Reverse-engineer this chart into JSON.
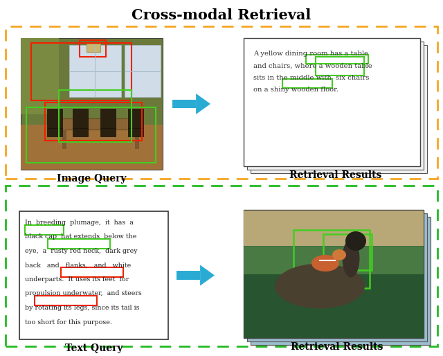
{
  "title": "Cross-modal Retrieval",
  "title_fontsize": 15,
  "background_color": "#ffffff",
  "orange_dash_color": "#F5A623",
  "green_dash_color": "#22BB22",
  "arrow_color": "#29ABD4",
  "panel_label_fontsize": 10,
  "top_panel": {
    "label_left": "Image Query",
    "label_right": "Retrieval Results",
    "text_lines": [
      "A yellow dining room has a table",
      "and chairs, where a wooden table",
      "sits in the middle with  six chairs",
      "on a shiny wooden floor."
    ]
  },
  "bottom_panel": {
    "label_left": "Text Query",
    "label_right": "Retrieval Results",
    "text_lines": [
      "In  breeding  plumage,  it  has  a",
      "black cap  hat extends  below the",
      "eye,  a  rusty red neck,  dark grey",
      "back   and   flanks,   and   white",
      "underparts.  It uses its feet  for",
      "propulsion underwater,  and steers",
      "by rotating its legs, since its tail is",
      "too short for this purpose."
    ]
  }
}
